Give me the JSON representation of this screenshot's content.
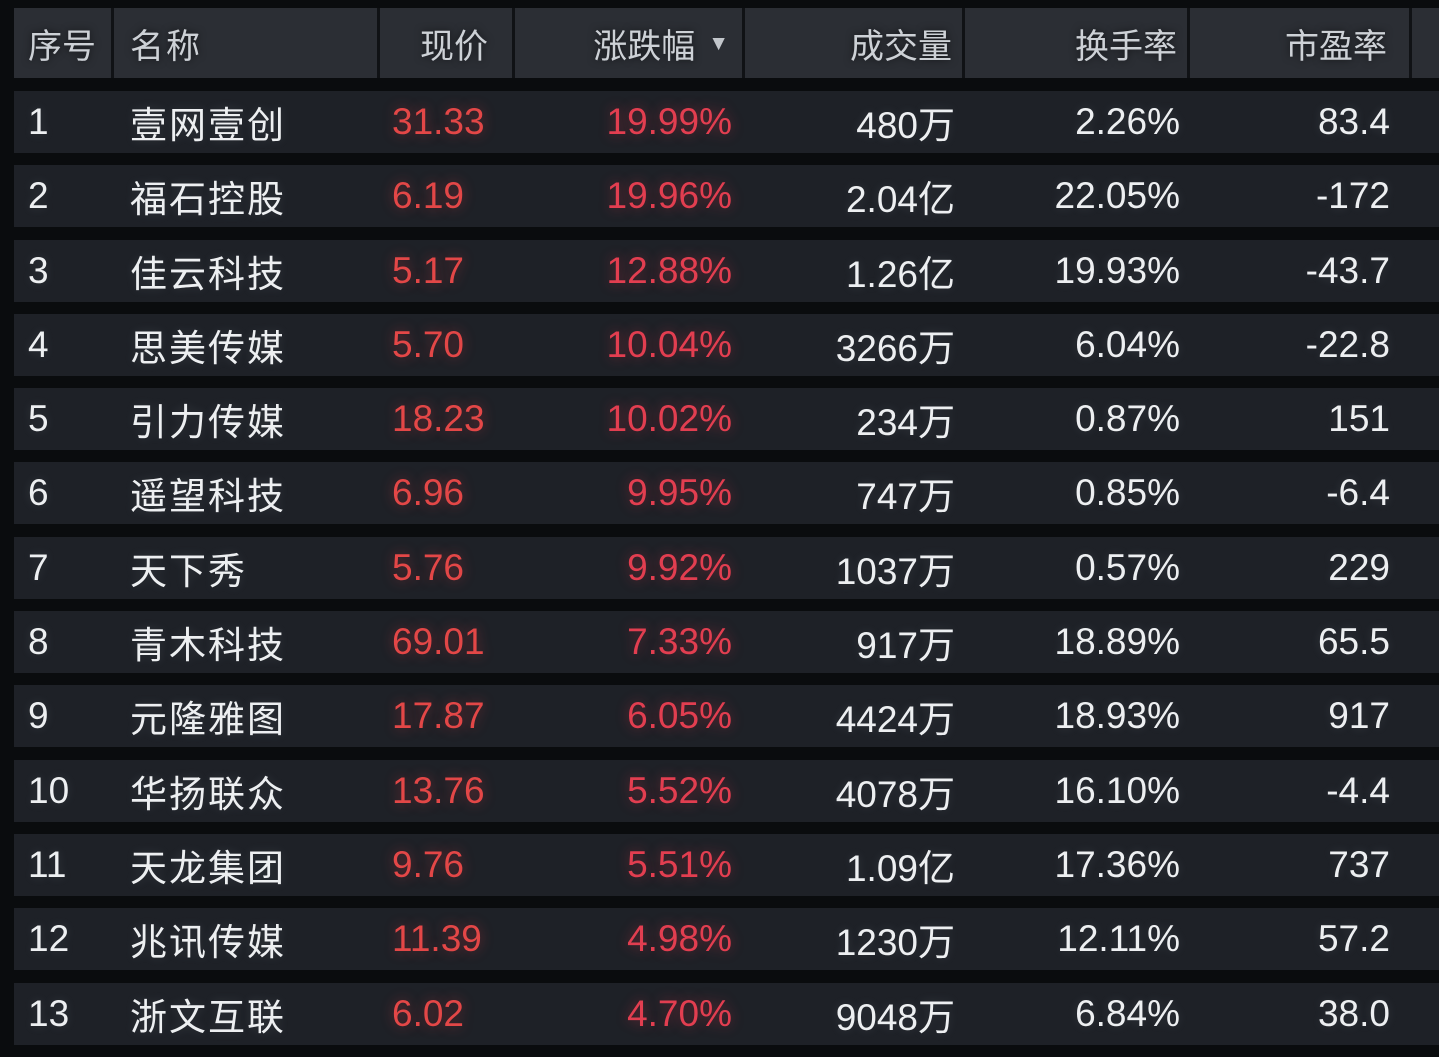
{
  "table": {
    "columns": [
      {
        "key": "seq",
        "label": "序号"
      },
      {
        "key": "name",
        "label": "名称"
      },
      {
        "key": "price",
        "label": "现价"
      },
      {
        "key": "change",
        "label": "涨跌幅"
      },
      {
        "key": "volume",
        "label": "成交量"
      },
      {
        "key": "turnover",
        "label": "换手率"
      },
      {
        "key": "pe",
        "label": "市盈率"
      }
    ],
    "sort": {
      "column": "涨跌幅",
      "direction": "desc",
      "indicator": "▼"
    },
    "rows": [
      {
        "seq": "1",
        "name": "壹网壹创",
        "price": "31.33",
        "change": "19.99%",
        "volume": "480万",
        "turnover": "2.26%",
        "pe": "83.4"
      },
      {
        "seq": "2",
        "name": "福石控股",
        "price": "6.19",
        "change": "19.96%",
        "volume": "2.04亿",
        "turnover": "22.05%",
        "pe": "-172"
      },
      {
        "seq": "3",
        "name": "佳云科技",
        "price": "5.17",
        "change": "12.88%",
        "volume": "1.26亿",
        "turnover": "19.93%",
        "pe": "-43.7"
      },
      {
        "seq": "4",
        "name": "思美传媒",
        "price": "5.70",
        "change": "10.04%",
        "volume": "3266万",
        "turnover": "6.04%",
        "pe": "-22.8"
      },
      {
        "seq": "5",
        "name": "引力传媒",
        "price": "18.23",
        "change": "10.02%",
        "volume": "234万",
        "turnover": "0.87%",
        "pe": "151"
      },
      {
        "seq": "6",
        "name": "遥望科技",
        "price": "6.96",
        "change": "9.95%",
        "volume": "747万",
        "turnover": "0.85%",
        "pe": "-6.4"
      },
      {
        "seq": "7",
        "name": "天下秀",
        "price": "5.76",
        "change": "9.92%",
        "volume": "1037万",
        "turnover": "0.57%",
        "pe": "229"
      },
      {
        "seq": "8",
        "name": "青木科技",
        "price": "69.01",
        "change": "7.33%",
        "volume": "917万",
        "turnover": "18.89%",
        "pe": "65.5"
      },
      {
        "seq": "9",
        "name": "元隆雅图",
        "price": "17.87",
        "change": "6.05%",
        "volume": "4424万",
        "turnover": "18.93%",
        "pe": "917"
      },
      {
        "seq": "10",
        "name": "华扬联众",
        "price": "13.76",
        "change": "5.52%",
        "volume": "4078万",
        "turnover": "16.10%",
        "pe": "-4.4"
      },
      {
        "seq": "11",
        "name": "天龙集团",
        "price": "9.76",
        "change": "5.51%",
        "volume": "1.09亿",
        "turnover": "17.36%",
        "pe": "737"
      },
      {
        "seq": "12",
        "name": "兆讯传媒",
        "price": "11.39",
        "change": "4.98%",
        "volume": "1230万",
        "turnover": "12.11%",
        "pe": "57.2"
      },
      {
        "seq": "13",
        "name": "浙文互联",
        "price": "6.02",
        "change": "4.70%",
        "volume": "9048万",
        "turnover": "6.84%",
        "pe": "38.0"
      }
    ]
  },
  "colors": {
    "page_bg": "#0a0c0e",
    "header_bg": "#2b2e34",
    "row_bg": "#1e2127",
    "up_red": "#e34747",
    "text_white": "#edeff1"
  }
}
